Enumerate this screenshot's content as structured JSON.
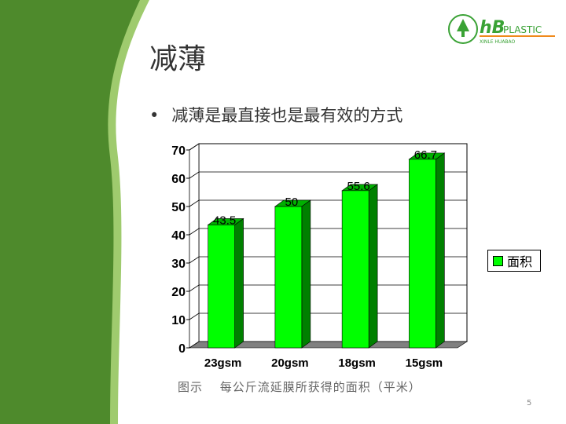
{
  "slide": {
    "title": "减薄",
    "bullet": "减薄是最直接也是最有效的方式",
    "caption": "图示　 每公斤流延膜所获得的面积（平米）",
    "page_number": "5",
    "logo": {
      "brand": "HB PLASTIC",
      "sub": "XINLE HUABAO",
      "seal": "GREEN TREE"
    }
  },
  "colors": {
    "bar_front": "#00ff00",
    "bar_side": "#008000",
    "background_green": "#4e8a2c",
    "floor": "#808080"
  },
  "chart_data": {
    "type": "bar",
    "title": "",
    "categories": [
      "23gsm",
      "20gsm",
      "18gsm",
      "15gsm"
    ],
    "series": [
      {
        "name": "面积",
        "values": [
          43.5,
          50,
          55.6,
          66.7
        ]
      }
    ],
    "data_labels": [
      "43.5",
      "50",
      "55.6",
      "66.7"
    ],
    "yticks": [
      0,
      10,
      20,
      30,
      40,
      50,
      60,
      70
    ],
    "ylim": [
      0,
      70
    ],
    "grid": true,
    "legend": "right",
    "style": "3d"
  }
}
